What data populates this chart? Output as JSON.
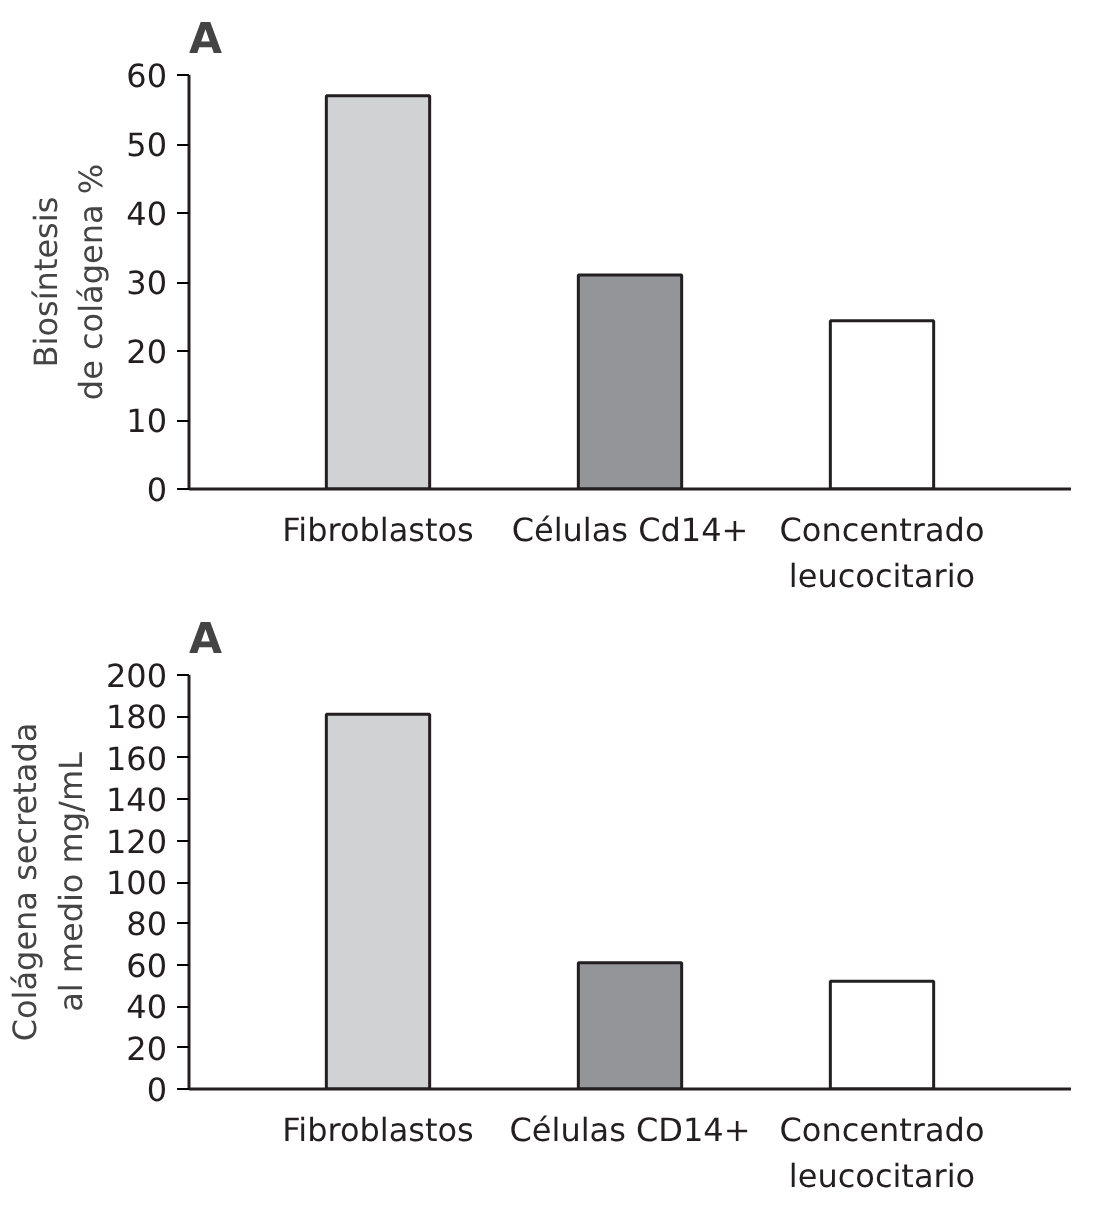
{
  "chart_data": [
    {
      "type": "bar",
      "title": "A",
      "ylabel": "Biosíntesis de colágena %",
      "categories": [
        "Fibroblastos",
        "Células Cd14+",
        "Concentrado leucocitario"
      ],
      "values": [
        57,
        31,
        24.4
      ],
      "colors": [
        "#d1d2d4",
        "#939598",
        "#ffffff"
      ],
      "ylim": [
        0,
        60
      ],
      "yticks": [
        0,
        10,
        20,
        30,
        40,
        50,
        60
      ],
      "grid": false
    },
    {
      "type": "bar",
      "title": "A",
      "ylabel": "Colágena secretada al medio mg/mL",
      "categories": [
        "Fibroblastos",
        "Células CD14+",
        "Concentrado leucocitario"
      ],
      "values": [
        181,
        61,
        52
      ],
      "colors": [
        "#d1d2d4",
        "#939598",
        "#ffffff"
      ],
      "ylim": [
        0,
        200
      ],
      "yticks": [
        0,
        20,
        40,
        60,
        80,
        100,
        120,
        140,
        160,
        180,
        200
      ],
      "grid": false
    }
  ]
}
